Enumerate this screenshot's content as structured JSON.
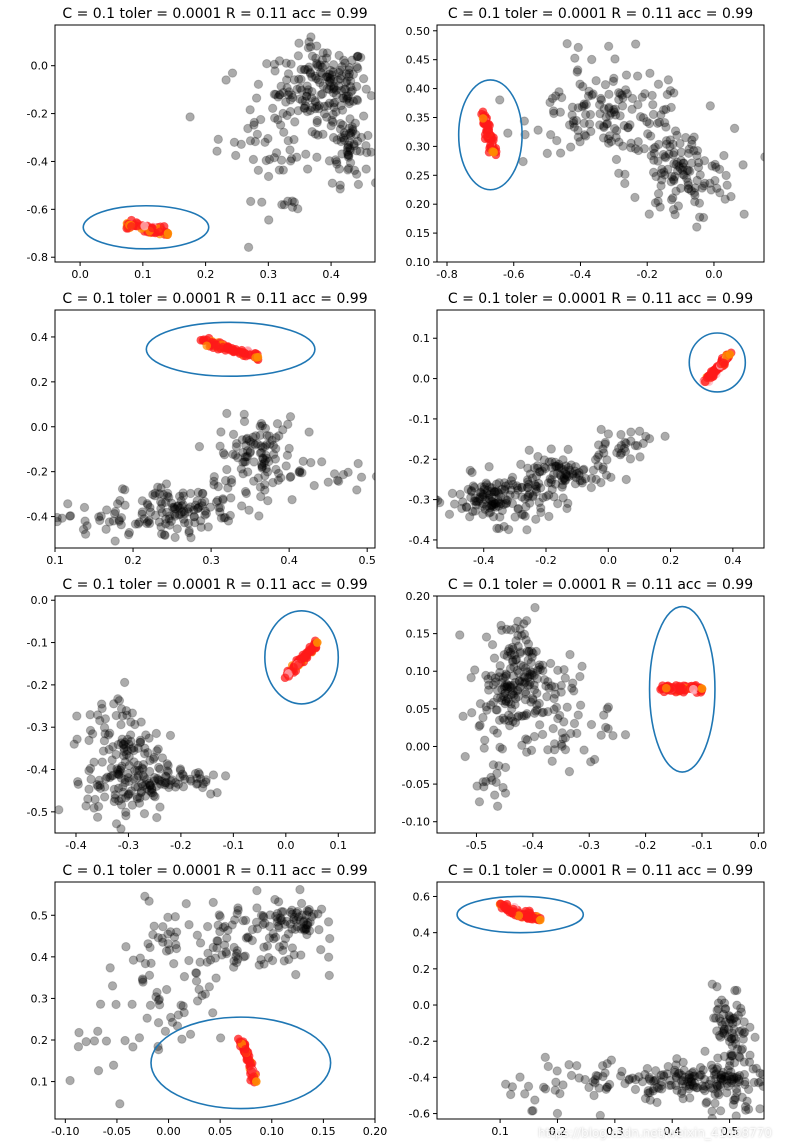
{
  "figure": {
    "watermark": "https://blog.csdn.net/weixin_41068770"
  },
  "colors": {
    "black_points": "#000000",
    "red_points": "#ff1a1a",
    "orange_points": "#ff8c00",
    "pink_points": "#ffb6c1",
    "ellipse": "#1f77b4"
  },
  "chart_data": [
    {
      "type": "scatter",
      "title": "C = 0.1  toler = 0.0001  R = 0.11  acc = 0.99",
      "xlim": [
        -0.04,
        0.47
      ],
      "ylim": [
        -0.82,
        0.17
      ],
      "xticks": [
        0.0,
        0.1,
        0.2,
        0.3,
        0.4
      ],
      "yticks": [
        0.0,
        -0.2,
        -0.4,
        -0.6,
        -0.8
      ],
      "xtick_labels": [
        "0.0",
        "0.1",
        "0.2",
        "0.3",
        "0.4"
      ],
      "ytick_labels": [
        "0.0",
        "-0.2",
        "-0.4",
        "-0.6",
        "-0.8"
      ],
      "ellipse": {
        "cx": 0.105,
        "cy": -0.675,
        "rx": 0.1,
        "ry": 0.09
      },
      "red_cluster": {
        "x": [
          0.07,
          0.14
        ],
        "y": [
          -0.66,
          -0.7
        ]
      },
      "black_clusters": [
        {
          "x": 0.39,
          "y": -0.08,
          "sx": 0.035,
          "sy": 0.08,
          "n": 150
        },
        {
          "x": 0.43,
          "y": -0.33,
          "sx": 0.015,
          "sy": 0.08,
          "n": 60
        },
        {
          "x": 0.32,
          "y": -0.25,
          "sx": 0.05,
          "sy": 0.15,
          "n": 80
        },
        {
          "x": 0.34,
          "y": -0.58,
          "sx": 0.01,
          "sy": 0.01,
          "n": 6
        }
      ]
    },
    {
      "type": "scatter",
      "title": "C = 0.1  toler = 0.0001  R = 0.11  acc = 0.99",
      "xlim": [
        -0.83,
        0.15
      ],
      "ylim": [
        0.1,
        0.51
      ],
      "xticks": [
        -0.8,
        -0.6,
        -0.4,
        -0.2,
        0.0
      ],
      "yticks": [
        0.1,
        0.15,
        0.2,
        0.25,
        0.3,
        0.35,
        0.4,
        0.45,
        0.5
      ],
      "xtick_labels": [
        "-0.8",
        "-0.6",
        "-0.4",
        "-0.2",
        "0.0"
      ],
      "ytick_labels": [
        "0.10",
        "0.15",
        "0.20",
        "0.25",
        "0.30",
        "0.35",
        "0.40",
        "0.45",
        "0.50"
      ],
      "ellipse": {
        "cx": -0.67,
        "cy": 0.32,
        "rx": 0.095,
        "ry": 0.095
      },
      "red_cluster": {
        "x": [
          -0.69,
          -0.66
        ],
        "y": [
          0.355,
          0.29
        ]
      },
      "black_clusters": [
        {
          "x": -0.3,
          "y": 0.35,
          "sx": 0.12,
          "sy": 0.03,
          "n": 120
        },
        {
          "x": -0.1,
          "y": 0.25,
          "sx": 0.08,
          "sy": 0.04,
          "n": 120
        },
        {
          "x": -0.35,
          "y": 0.44,
          "sx": 0.1,
          "sy": 0.04,
          "n": 20
        }
      ]
    },
    {
      "type": "scatter",
      "title": "C = 0.1  toler = 0.0001  R = 0.11  acc = 0.99",
      "xlim": [
        0.1,
        0.51
      ],
      "ylim": [
        -0.54,
        0.52
      ],
      "xticks": [
        0.1,
        0.2,
        0.3,
        0.4,
        0.5
      ],
      "yticks": [
        0.4,
        0.2,
        0.0,
        -0.2,
        -0.4
      ],
      "xtick_labels": [
        "0.1",
        "0.2",
        "0.3",
        "0.4",
        "0.5"
      ],
      "ytick_labels": [
        "0.4",
        "0.2",
        "0.0",
        "-0.2",
        "-0.4"
      ],
      "ellipse": {
        "cx": 0.325,
        "cy": 0.345,
        "rx": 0.108,
        "ry": 0.12
      },
      "red_cluster": {
        "x": [
          0.29,
          0.36
        ],
        "y": [
          0.38,
          0.31
        ]
      },
      "black_clusters": [
        {
          "x": 0.2,
          "y": -0.42,
          "sx": 0.05,
          "sy": 0.04,
          "n": 70
        },
        {
          "x": 0.27,
          "y": -0.35,
          "sx": 0.04,
          "sy": 0.05,
          "n": 80
        },
        {
          "x": 0.36,
          "y": -0.12,
          "sx": 0.025,
          "sy": 0.08,
          "n": 100
        },
        {
          "x": 0.43,
          "y": -0.22,
          "sx": 0.05,
          "sy": 0.04,
          "n": 25
        }
      ]
    },
    {
      "type": "scatter",
      "title": "C = 0.1  toler = 0.0001  R = 0.11  acc = 0.99",
      "xlim": [
        -0.55,
        0.5
      ],
      "ylim": [
        -0.42,
        0.17
      ],
      "xticks": [
        -0.4,
        -0.2,
        0.0,
        0.2,
        0.4
      ],
      "yticks": [
        0.1,
        0.0,
        -0.1,
        -0.2,
        -0.3,
        -0.4
      ],
      "xtick_labels": [
        "-0.4",
        "-0.2",
        "0.0",
        "0.2",
        "0.4"
      ],
      "ytick_labels": [
        "0.1",
        "0.0",
        "-0.1",
        "-0.2",
        "-0.3",
        "-0.4"
      ],
      "ellipse": {
        "cx": 0.35,
        "cy": 0.04,
        "rx": 0.09,
        "ry": 0.073
      },
      "red_cluster": {
        "x": [
          0.31,
          0.39
        ],
        "y": [
          -0.01,
          0.06
        ]
      },
      "black_clusters": [
        {
          "x": -0.35,
          "y": -0.3,
          "sx": 0.08,
          "sy": 0.03,
          "n": 150
        },
        {
          "x": -0.15,
          "y": -0.24,
          "sx": 0.07,
          "sy": 0.025,
          "n": 90
        },
        {
          "x": 0.05,
          "y": -0.16,
          "sx": 0.06,
          "sy": 0.02,
          "n": 30
        }
      ]
    },
    {
      "type": "scatter",
      "title": "C = 0.1  toler = 0.0001  R = 0.11  acc = 0.99",
      "xlim": [
        -0.44,
        0.17
      ],
      "ylim": [
        -0.55,
        0.01
      ],
      "xticks": [
        -0.4,
        -0.3,
        -0.2,
        -0.1,
        0.0,
        0.1
      ],
      "yticks": [
        0.0,
        -0.1,
        -0.2,
        -0.3,
        -0.4,
        -0.5
      ],
      "xtick_labels": [
        "-0.4",
        "-0.3",
        "-0.2",
        "-0.1",
        "0.0",
        "0.1"
      ],
      "ytick_labels": [
        "0.0",
        "-0.1",
        "-0.2",
        "-0.3",
        "-0.4",
        "-0.5"
      ],
      "ellipse": {
        "cx": 0.03,
        "cy": -0.135,
        "rx": 0.07,
        "ry": 0.11
      },
      "red_cluster": {
        "x": [
          0.0,
          0.06
        ],
        "y": [
          -0.18,
          -0.1
        ]
      },
      "black_clusters": [
        {
          "x": -0.3,
          "y": -0.42,
          "sx": 0.04,
          "sy": 0.05,
          "n": 150
        },
        {
          "x": -0.32,
          "y": -0.3,
          "sx": 0.03,
          "sy": 0.05,
          "n": 40
        },
        {
          "x": -0.2,
          "y": -0.42,
          "sx": 0.05,
          "sy": 0.02,
          "n": 40
        }
      ]
    },
    {
      "type": "scatter",
      "title": "C = 0.1  toler = 0.0001  R = 0.11  acc = 0.99",
      "xlim": [
        -0.57,
        0.01
      ],
      "ylim": [
        -0.115,
        0.2
      ],
      "xticks": [
        -0.5,
        -0.4,
        -0.3,
        -0.2,
        -0.1,
        0.0
      ],
      "yticks": [
        0.2,
        0.15,
        0.1,
        0.05,
        0.0,
        -0.05,
        -0.1
      ],
      "xtick_labels": [
        "-0.5",
        "-0.4",
        "-0.3",
        "-0.2",
        "-0.1",
        "0.0"
      ],
      "ytick_labels": [
        "0.20",
        "0.15",
        "0.10",
        "0.05",
        "0.00",
        "-0.05",
        "-0.10"
      ],
      "ellipse": {
        "cx": -0.135,
        "cy": 0.076,
        "rx": 0.058,
        "ry": 0.11
      },
      "red_cluster": {
        "x": [
          -0.17,
          -0.1
        ],
        "y": [
          0.077,
          0.077
        ]
      },
      "black_clusters": [
        {
          "x": -0.44,
          "y": 0.08,
          "sx": 0.03,
          "sy": 0.03,
          "n": 120
        },
        {
          "x": -0.42,
          "y": 0.13,
          "sx": 0.015,
          "sy": 0.02,
          "n": 40
        },
        {
          "x": -0.36,
          "y": 0.04,
          "sx": 0.05,
          "sy": 0.04,
          "n": 80
        },
        {
          "x": -0.49,
          "y": -0.03,
          "sx": 0.02,
          "sy": 0.05,
          "n": 25
        }
      ]
    },
    {
      "type": "scatter",
      "title": "C = 0.1  toler = 0.0001  R = 0.11  acc = 0.99",
      "xlim": [
        -0.11,
        0.2
      ],
      "ylim": [
        0.01,
        0.58
      ],
      "xticks": [
        -0.1,
        -0.05,
        0.0,
        0.05,
        0.1,
        0.15,
        0.2
      ],
      "yticks": [
        0.5,
        0.4,
        0.3,
        0.2,
        0.1
      ],
      "xtick_labels": [
        "-0.10",
        "-0.05",
        "0.00",
        "0.05",
        "0.10",
        "0.15",
        "0.20"
      ],
      "ytick_labels": [
        "0.5",
        "0.4",
        "0.3",
        "0.2",
        "0.1"
      ],
      "ellipse": {
        "cx": 0.07,
        "cy": 0.145,
        "rx": 0.087,
        "ry": 0.11
      },
      "red_cluster": {
        "x": [
          0.07,
          0.085
        ],
        "y": [
          0.2,
          0.1
        ]
      },
      "black_clusters": [
        {
          "x": 0.12,
          "y": 0.49,
          "sx": 0.02,
          "sy": 0.02,
          "n": 60
        },
        {
          "x": 0.06,
          "y": 0.44,
          "sx": 0.04,
          "sy": 0.05,
          "n": 100
        },
        {
          "x": 0.0,
          "y": 0.32,
          "sx": 0.03,
          "sy": 0.07,
          "n": 50
        },
        {
          "x": -0.05,
          "y": 0.2,
          "sx": 0.03,
          "sy": 0.05,
          "n": 15
        }
      ]
    },
    {
      "type": "scatter",
      "title": "C = 0.1  toler = 0.0001  R = 0.11  acc = 0.99",
      "xlim": [
        -0.01,
        0.56
      ],
      "ylim": [
        -0.63,
        0.68
      ],
      "xticks": [
        0.1,
        0.2,
        0.3,
        0.4,
        0.5
      ],
      "yticks": [
        0.6,
        0.4,
        0.2,
        0.0,
        -0.2,
        -0.4,
        -0.6
      ],
      "xtick_labels": [
        "0.1",
        "0.2",
        "0.3",
        "0.4",
        "0.5"
      ],
      "ytick_labels": [
        "0.6",
        "0.4",
        "0.2",
        "0.0",
        "-0.2",
        "-0.4",
        "-0.6"
      ],
      "ellipse": {
        "cx": 0.135,
        "cy": 0.5,
        "rx": 0.11,
        "ry": 0.1
      },
      "red_cluster": {
        "x": [
          0.1,
          0.17
        ],
        "y": [
          0.55,
          0.47
        ]
      },
      "black_clusters": [
        {
          "x": 0.43,
          "y": -0.42,
          "sx": 0.05,
          "sy": 0.05,
          "n": 120
        },
        {
          "x": 0.5,
          "y": -0.15,
          "sx": 0.015,
          "sy": 0.12,
          "n": 70
        },
        {
          "x": 0.25,
          "y": -0.42,
          "sx": 0.07,
          "sy": 0.07,
          "n": 50
        },
        {
          "x": 0.52,
          "y": -0.45,
          "sx": 0.03,
          "sy": 0.1,
          "n": 50
        }
      ]
    }
  ]
}
